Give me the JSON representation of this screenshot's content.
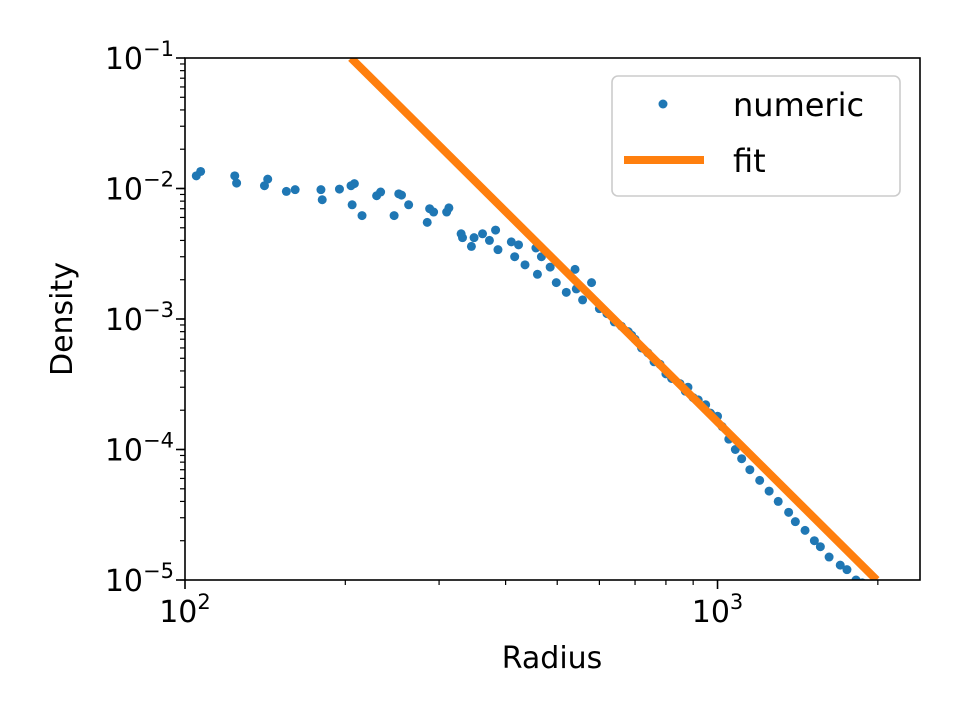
{
  "chart_data": {
    "type": "scatter",
    "xlabel": "Radius",
    "ylabel": "Density",
    "xscale": "log",
    "yscale": "log",
    "xlim": [
      100,
      2400
    ],
    "ylim": [
      1e-05,
      0.1
    ],
    "x_ticks": [
      {
        "value": 100,
        "base": "10",
        "exp": "2"
      },
      {
        "value": 1000,
        "base": "10",
        "exp": "3"
      }
    ],
    "y_ticks": [
      {
        "value": 0.1,
        "base": "10",
        "exp": "−1"
      },
      {
        "value": 0.01,
        "base": "10",
        "exp": "−2"
      },
      {
        "value": 0.001,
        "base": "10",
        "exp": "−3"
      },
      {
        "value": 0.0001,
        "base": "10",
        "exp": "−4"
      },
      {
        "value": 1e-05,
        "base": "10",
        "exp": "−5"
      }
    ],
    "grid": false,
    "legend_position": "upper right",
    "series": [
      {
        "name": "numeric",
        "style": "points",
        "color": "#1f77b4",
        "x": [
          105,
          107,
          124,
          125,
          141,
          143,
          155,
          161,
          180,
          181,
          195,
          205,
          208,
          206,
          215,
          229,
          233,
          247,
          252,
          255,
          263,
          285,
          288,
          293,
          310,
          313,
          330,
          332,
          345,
          349,
          362,
          373,
          383,
          387,
          410,
          416,
          423,
          435,
          456,
          459,
          467,
          485,
          498,
          520,
          540,
          543,
          558,
          580,
          600,
          620,
          640,
          660,
          680,
          690,
          700,
          720,
          740,
          760,
          780,
          800,
          820,
          850,
          870,
          880,
          900,
          920,
          950,
          970,
          1000,
          1020,
          1050,
          1080,
          1110,
          1150,
          1200,
          1250,
          1300,
          1360,
          1400,
          1460,
          1520,
          1560,
          1620,
          1700,
          1750,
          1820,
          1870,
          1950
        ],
        "y": [
          0.0125,
          0.0135,
          0.0125,
          0.011,
          0.0105,
          0.0118,
          0.0095,
          0.0098,
          0.0098,
          0.0082,
          0.0099,
          0.0105,
          0.0109,
          0.0075,
          0.0062,
          0.0088,
          0.0094,
          0.0062,
          0.0091,
          0.0089,
          0.0075,
          0.0055,
          0.007,
          0.0066,
          0.0066,
          0.0071,
          0.0045,
          0.0042,
          0.0036,
          0.0042,
          0.0045,
          0.004,
          0.0048,
          0.0034,
          0.0039,
          0.003,
          0.0037,
          0.0026,
          0.0035,
          0.0022,
          0.003,
          0.0025,
          0.0019,
          0.0016,
          0.0024,
          0.0017,
          0.0014,
          0.0019,
          0.0012,
          0.0011,
          0.00095,
          0.00088,
          0.0008,
          0.00075,
          0.0007,
          0.0006,
          0.00055,
          0.00047,
          0.00045,
          0.00038,
          0.00035,
          0.00032,
          0.00028,
          0.0003,
          0.00025,
          0.00024,
          0.00022,
          0.00019,
          0.00018,
          0.00015,
          0.00012,
          0.0001,
          8.5e-05,
          7e-05,
          5.8e-05,
          4.8e-05,
          4e-05,
          3.3e-05,
          2.8e-05,
          2.4e-05,
          2e-05,
          1.8e-05,
          1.5e-05,
          1.3e-05,
          1.2e-05,
          1e-05,
          9.5e-06,
          8.5e-06
        ]
      },
      {
        "name": "fit",
        "style": "line",
        "color": "#ff7f0e",
        "x": [
          205,
          1990
        ],
        "y": [
          0.1,
          1e-05
        ]
      }
    ]
  }
}
